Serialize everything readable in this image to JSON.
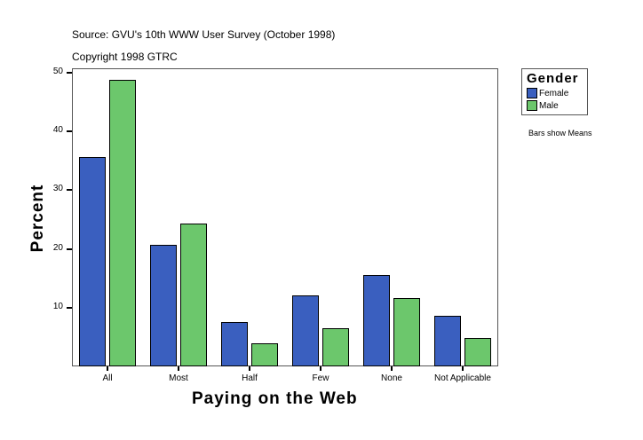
{
  "header": {
    "source": "Source: GVU's 10th WWW User Survey (October 1998)",
    "copyright": "Copyright 1998 GTRC"
  },
  "legend": {
    "title": "Gender",
    "items": [
      {
        "label": "Female",
        "color": "#3a5fbf"
      },
      {
        "label": "Male",
        "color": "#6cc76c"
      }
    ],
    "note": "Bars show Means"
  },
  "axes": {
    "ylabel": "Percent",
    "xlabel": "Paying on the Web",
    "yticks": [
      "50",
      "40",
      "30",
      "20",
      "10"
    ]
  },
  "chart_data": {
    "type": "bar",
    "title": "",
    "xlabel": "Paying on the Web",
    "ylabel": "Percent",
    "ylim": [
      0,
      50
    ],
    "yticks": [
      10,
      20,
      30,
      40,
      50
    ],
    "grid": false,
    "legend_position": "right",
    "legend_title": "Gender",
    "categories": [
      "All",
      "Most",
      "Half",
      "Few",
      "None",
      "Not Applicable"
    ],
    "series": [
      {
        "name": "Female",
        "color": "#3a5fbf",
        "values": [
          35.6,
          20.7,
          7.5,
          12.1,
          15.5,
          8.6
        ]
      },
      {
        "name": "Male",
        "color": "#6cc76c",
        "values": [
          48.8,
          24.3,
          3.9,
          6.5,
          11.6,
          4.8
        ]
      }
    ],
    "annotations": [
      "Source: GVU's 10th WWW User Survey (October 1998)",
      "Copyright 1998 GTRC",
      "Bars show Means"
    ]
  }
}
